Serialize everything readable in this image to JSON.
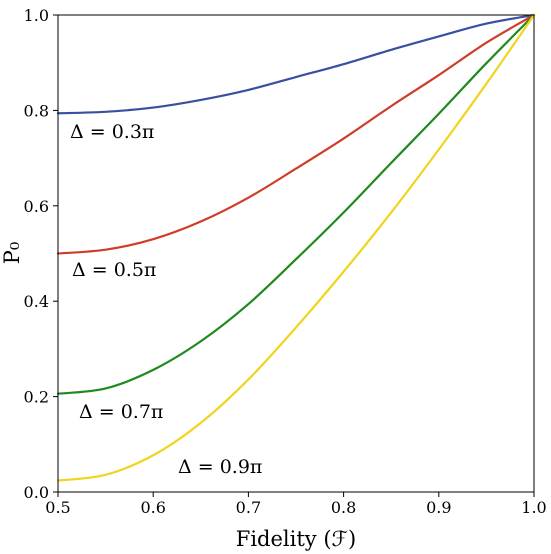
{
  "chart_data": {
    "type": "line",
    "xlabel": "Fidelity (ℱ)",
    "ylabel": "P₀",
    "xlim": [
      0.5,
      1.0
    ],
    "ylim": [
      0.0,
      1.0
    ],
    "x_ticks": [
      "0.5",
      "0.6",
      "0.7",
      "0.8",
      "0.9",
      "1.0"
    ],
    "y_ticks": [
      "0.0",
      "0.2",
      "0.4",
      "0.6",
      "0.8",
      "1.0"
    ],
    "grid": false,
    "x": [
      0.5,
      0.55,
      0.6,
      0.65,
      0.7,
      0.75,
      0.8,
      0.85,
      0.9,
      0.95,
      1.0
    ],
    "series": [
      {
        "name": "Δ = 0.3π",
        "color": "#3a4fa0",
        "values": [
          0.794,
          0.797,
          0.806,
          0.822,
          0.843,
          0.87,
          0.897,
          0.927,
          0.955,
          0.982,
          1.0
        ]
      },
      {
        "name": "Δ = 0.5π",
        "color": "#d03c28",
        "values": [
          0.5,
          0.508,
          0.53,
          0.567,
          0.617,
          0.678,
          0.741,
          0.809,
          0.874,
          0.942,
          1.0
        ]
      },
      {
        "name": "Δ = 0.7π",
        "color": "#1e8a1e",
        "values": [
          0.206,
          0.217,
          0.256,
          0.316,
          0.394,
          0.488,
          0.586,
          0.69,
          0.793,
          0.899,
          1.0
        ]
      },
      {
        "name": "Δ = 0.9π",
        "color": "#f0d41e",
        "values": [
          0.024,
          0.036,
          0.077,
          0.145,
          0.236,
          0.345,
          0.462,
          0.586,
          0.718,
          0.856,
          1.0
        ]
      }
    ]
  }
}
